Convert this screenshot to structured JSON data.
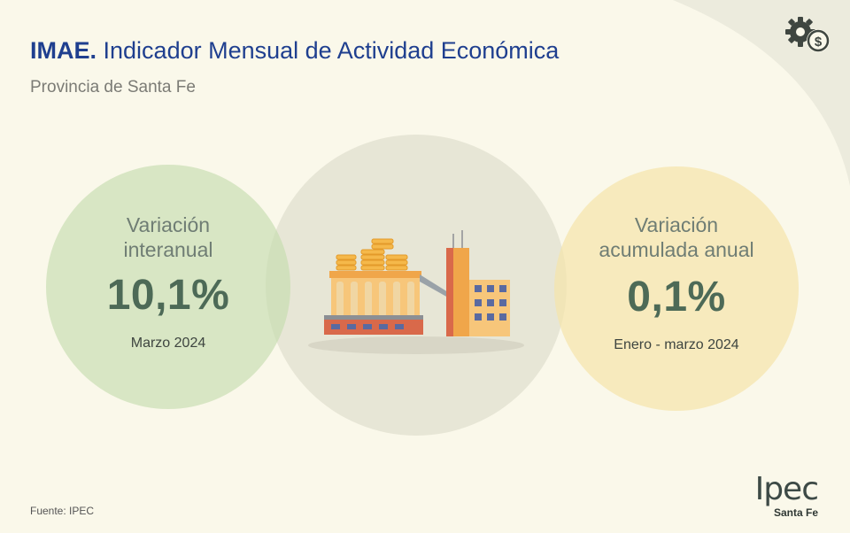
{
  "header": {
    "title_bold": "IMAE.",
    "title_rest": " Indicador Mensual de Actividad Económica",
    "subtitle": "Provincia de Santa Fe"
  },
  "stat_left": {
    "label_line1": "Variación",
    "label_line2": "interanual",
    "value": "10,1%",
    "period": "Marzo 2024"
  },
  "stat_right": {
    "label_line1": "Variación",
    "label_line2": "acumulada anual",
    "value": "0,1%",
    "period": "Enero - marzo 2024"
  },
  "footer": {
    "source": "Fuente: IPEC",
    "logo_main": "Ipec",
    "logo_sub": "Santa Fe"
  },
  "icons": {
    "top_right": "gear-dollar-icon",
    "center": "factory-silo-illustration"
  },
  "colors": {
    "title": "#1f3f8f",
    "value": "#4d6a57",
    "circle_left": "#c4dcac",
    "circle_mid": "#e2e0d0",
    "circle_right": "#f5e4aa",
    "background": "#faf8ea"
  }
}
